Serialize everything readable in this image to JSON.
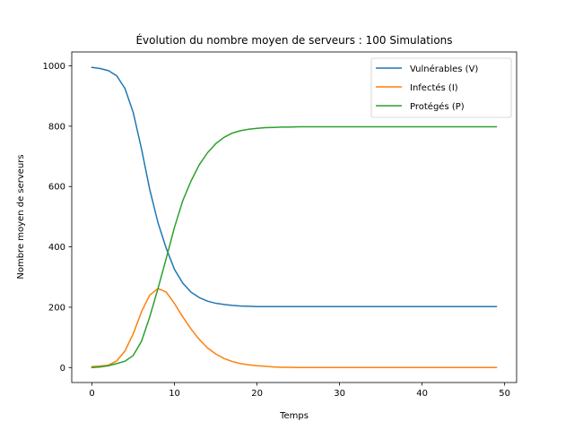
{
  "chart_data": {
    "type": "line",
    "title": "Évolution du nombre moyen de serveurs : 100 Simulations",
    "xlabel": "Temps",
    "ylabel": "Nombre moyen de serveurs",
    "xlim": [
      -2.45,
      51.45
    ],
    "ylim": [
      -49.65,
      1046.0
    ],
    "xticks": [
      0,
      10,
      20,
      30,
      40,
      50
    ],
    "yticks": [
      0,
      200,
      400,
      600,
      800,
      1000
    ],
    "grid": false,
    "legend_position": "top-right",
    "x": [
      0,
      1,
      2,
      3,
      4,
      5,
      6,
      7,
      8,
      9,
      10,
      11,
      12,
      13,
      14,
      15,
      16,
      17,
      18,
      19,
      20,
      21,
      22,
      23,
      24,
      25,
      26,
      27,
      28,
      29,
      30,
      31,
      32,
      33,
      34,
      35,
      36,
      37,
      38,
      39,
      40,
      41,
      42,
      43,
      44,
      45,
      46,
      47,
      48,
      49
    ],
    "series": [
      {
        "name": "Vulnérables (V)",
        "color": "#1f77b4",
        "values": [
          995,
          991,
          984,
          967,
          925,
          845,
          725,
          590,
          480,
          395,
          325,
          280,
          250,
          232,
          220,
          213,
          209,
          206,
          204,
          203,
          202,
          202,
          202,
          202,
          202,
          202,
          202,
          202,
          202,
          202,
          202,
          202,
          202,
          202,
          202,
          202,
          202,
          202,
          202,
          202,
          202,
          202,
          202,
          202,
          202,
          202,
          202,
          202,
          202,
          202
        ]
      },
      {
        "name": "Infectés (I)",
        "color": "#ff7f0e",
        "values": [
          3,
          5,
          8,
          22,
          55,
          112,
          185,
          240,
          262,
          250,
          212,
          168,
          128,
          93,
          65,
          45,
          30,
          20,
          13,
          9,
          6,
          4,
          2,
          1,
          1,
          0,
          0,
          0,
          0,
          0,
          0,
          0,
          0,
          0,
          0,
          0,
          0,
          0,
          0,
          0,
          0,
          0,
          0,
          0,
          0,
          0,
          0,
          0,
          0,
          0
        ]
      },
      {
        "name": "Protégés (P)",
        "color": "#2ca02c",
        "values": [
          0,
          2,
          6,
          13,
          21,
          40,
          87,
          168,
          262,
          362,
          465,
          553,
          618,
          672,
          712,
          742,
          763,
          777,
          785,
          790,
          793,
          795,
          796,
          797,
          797,
          798,
          798,
          798,
          798,
          798,
          798,
          798,
          798,
          798,
          798,
          798,
          798,
          798,
          798,
          798,
          798,
          798,
          798,
          798,
          798,
          798,
          798,
          798,
          798,
          798
        ]
      }
    ]
  }
}
